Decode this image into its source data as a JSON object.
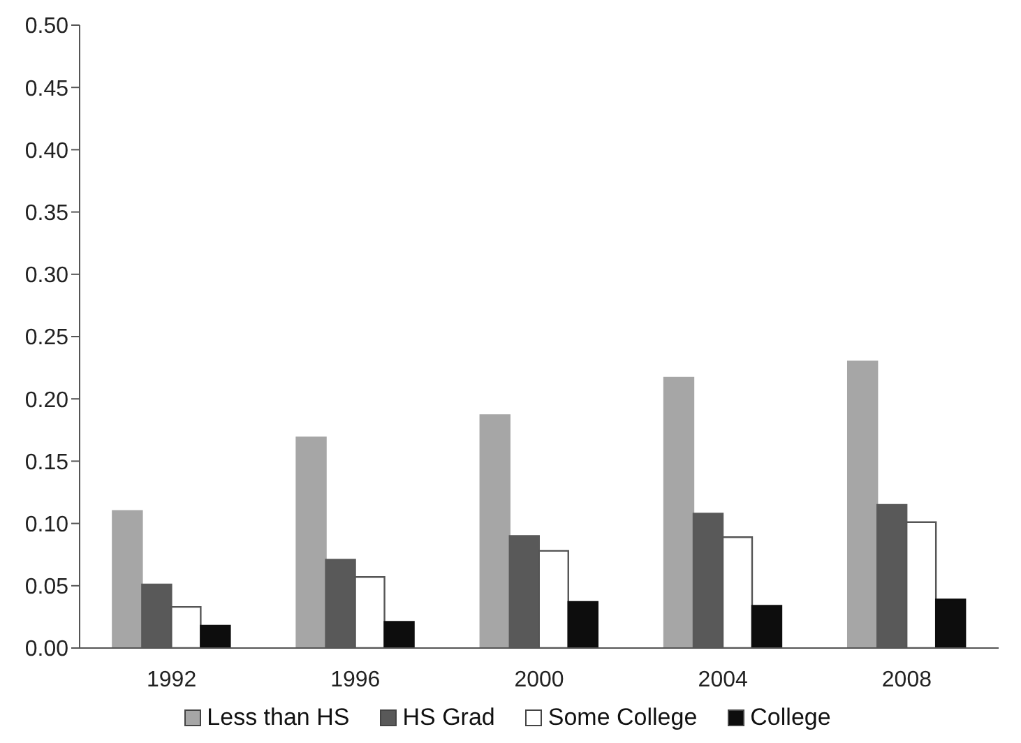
{
  "chart_data": {
    "type": "bar",
    "categories": [
      "1992",
      "1996",
      "2000",
      "2004",
      "2008"
    ],
    "series": [
      {
        "name": "Less than HS",
        "color": "#a6a6a6",
        "values": [
          0.11,
          0.169,
          0.187,
          0.217,
          0.23
        ]
      },
      {
        "name": "HS Grad",
        "color": "#595959",
        "values": [
          0.051,
          0.071,
          0.09,
          0.108,
          0.115
        ]
      },
      {
        "name": "Some College",
        "color": "#ffffff",
        "values": [
          0.033,
          0.057,
          0.078,
          0.089,
          0.101
        ]
      },
      {
        "name": "College",
        "color": "#0d0d0d",
        "values": [
          0.018,
          0.021,
          0.037,
          0.034,
          0.039
        ]
      }
    ],
    "ylim": [
      0,
      0.5
    ],
    "yticks": [
      {
        "value": 0,
        "label": "0.00"
      },
      0.05,
      {
        "value": 0.1,
        "label": "0.10"
      },
      0.15,
      {
        "value": 0.2,
        "label": "0.20"
      },
      0.25,
      {
        "value": 0.3,
        "label": "0.30"
      },
      0.35,
      {
        "value": 0.4,
        "label": "0.40"
      },
      0.45,
      {
        "value": 0.5,
        "label": "0.50"
      }
    ],
    "grid": false,
    "legend": "bottom"
  }
}
